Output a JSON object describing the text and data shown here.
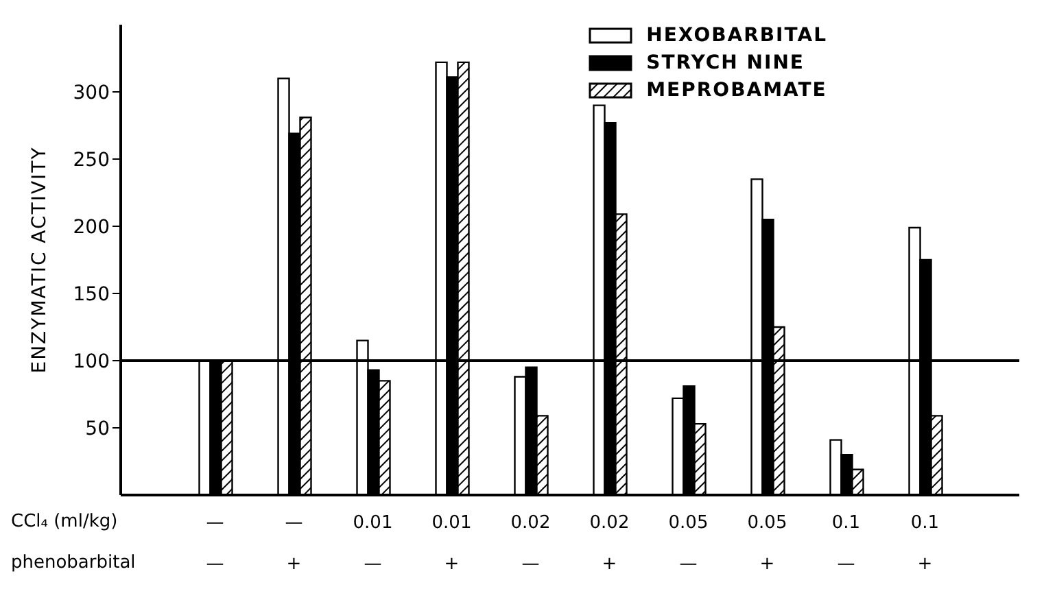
{
  "chart_data": {
    "type": "bar",
    "ylabel": "ENZYMATIC ACTIVITY",
    "categories": [
      "—\n—",
      "—\n+",
      "0.01\n—",
      "0.01\n+",
      "0.02\n—",
      "0.02\n+",
      "0.05\n—",
      "0.05\n+",
      "0.1\n—",
      "0.1\n+"
    ],
    "series": [
      {
        "name": "HEXOBARBITAL",
        "color": "#ffffff",
        "values": [
          100,
          310,
          115,
          322,
          88,
          290,
          72,
          235,
          41,
          199
        ]
      },
      {
        "name": "STRYCH NINE",
        "color": "#000000",
        "values": [
          100,
          269,
          93,
          311,
          95,
          277,
          81,
          205,
          30,
          175
        ]
      },
      {
        "name": "MEPROBAMATE",
        "color": "#000000",
        "values": [
          100,
          281,
          85,
          322,
          59,
          209,
          53,
          125,
          19,
          59
        ]
      }
    ],
    "ylim": [
      0,
      350
    ],
    "yticks": [
      50,
      100,
      150,
      200,
      250,
      300
    ],
    "grid": false,
    "legend": "top right",
    "ref_lines": [
      {
        "axis": "y",
        "value": 100,
        "color": "#000000"
      }
    ],
    "annotations": [
      "CCl₄ (ml/kg)",
      "phenobarbital"
    ]
  }
}
